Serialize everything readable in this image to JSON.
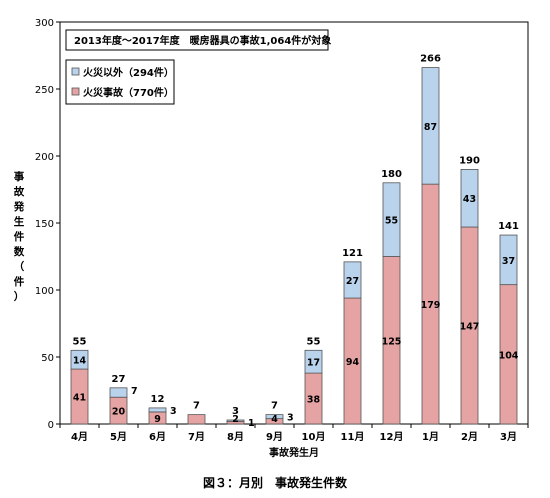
{
  "chart_data": {
    "type": "bar",
    "stacked": true,
    "note": "2013年度～2017年度　暖房器具の事故1,064件が対象",
    "ylabel": "事故発生件数（件）",
    "xlabel": "事故発生月",
    "caption": "図３：月別　事故発生件数",
    "ylim": [
      0,
      300
    ],
    "yticks": [
      0,
      50,
      100,
      150,
      200,
      250,
      300
    ],
    "grid": false,
    "legend_position": "top-left",
    "categories": [
      "4月",
      "5月",
      "6月",
      "7月",
      "8月",
      "9月",
      "10月",
      "11月",
      "12月",
      "1月",
      "2月",
      "3月"
    ],
    "totals": [
      55,
      27,
      12,
      7,
      3,
      7,
      55,
      121,
      180,
      266,
      190,
      141
    ],
    "series": [
      {
        "name": "火災事故（770件）",
        "color": "#e6a3a3",
        "values": [
          41,
          20,
          9,
          7,
          2,
          4,
          38,
          94,
          125,
          179,
          147,
          104
        ],
        "labels": [
          "41",
          "20",
          "9",
          "",
          "2",
          "4",
          "38",
          "94",
          "125",
          "179",
          "147",
          "104"
        ]
      },
      {
        "name": "火災以外（294件）",
        "color": "#b9d3ec",
        "values": [
          14,
          7,
          3,
          0,
          1,
          3,
          17,
          27,
          55,
          87,
          43,
          37
        ],
        "labels": [
          "14",
          "7",
          "3",
          "",
          "1",
          "3",
          "17",
          "27",
          "55",
          "87",
          "43",
          "37"
        ]
      }
    ]
  }
}
